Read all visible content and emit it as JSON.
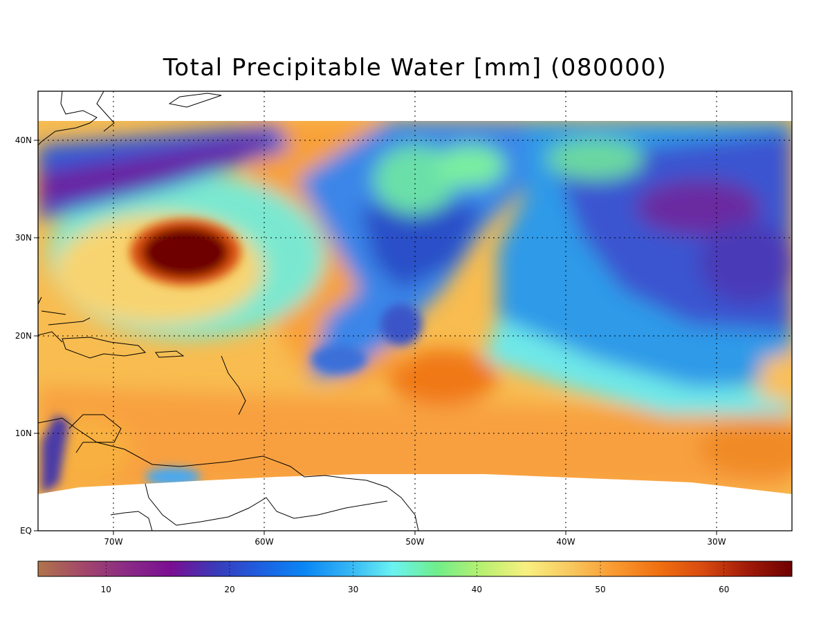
{
  "title": "Total Precipitable Water [mm]  (080000)",
  "map": {
    "lat_labels": [
      "40N",
      "30N",
      "20N",
      "10N",
      "EQ"
    ],
    "lon_labels": [
      "70W",
      "60W",
      "50W",
      "40W",
      "30W"
    ]
  },
  "colorbar": {
    "min": 4.5,
    "max": 65.5,
    "tick_labels": [
      "10",
      "20",
      "30",
      "40",
      "50",
      "60"
    ],
    "colors": [
      "#b0744a",
      "#a3486a",
      "#8a2a86",
      "#7a0e92",
      "#3a3ab8",
      "#1e5fe0",
      "#0a86f4",
      "#33b4f4",
      "#6af2f2",
      "#70ee8a",
      "#b8f070",
      "#f8f080",
      "#f8c860",
      "#f89a30",
      "#f07010",
      "#d84a10",
      "#a01a08",
      "#6e0000"
    ]
  },
  "colors": {
    "frame": "#000000",
    "coast": "#000000",
    "missing": "#ffffff"
  }
}
